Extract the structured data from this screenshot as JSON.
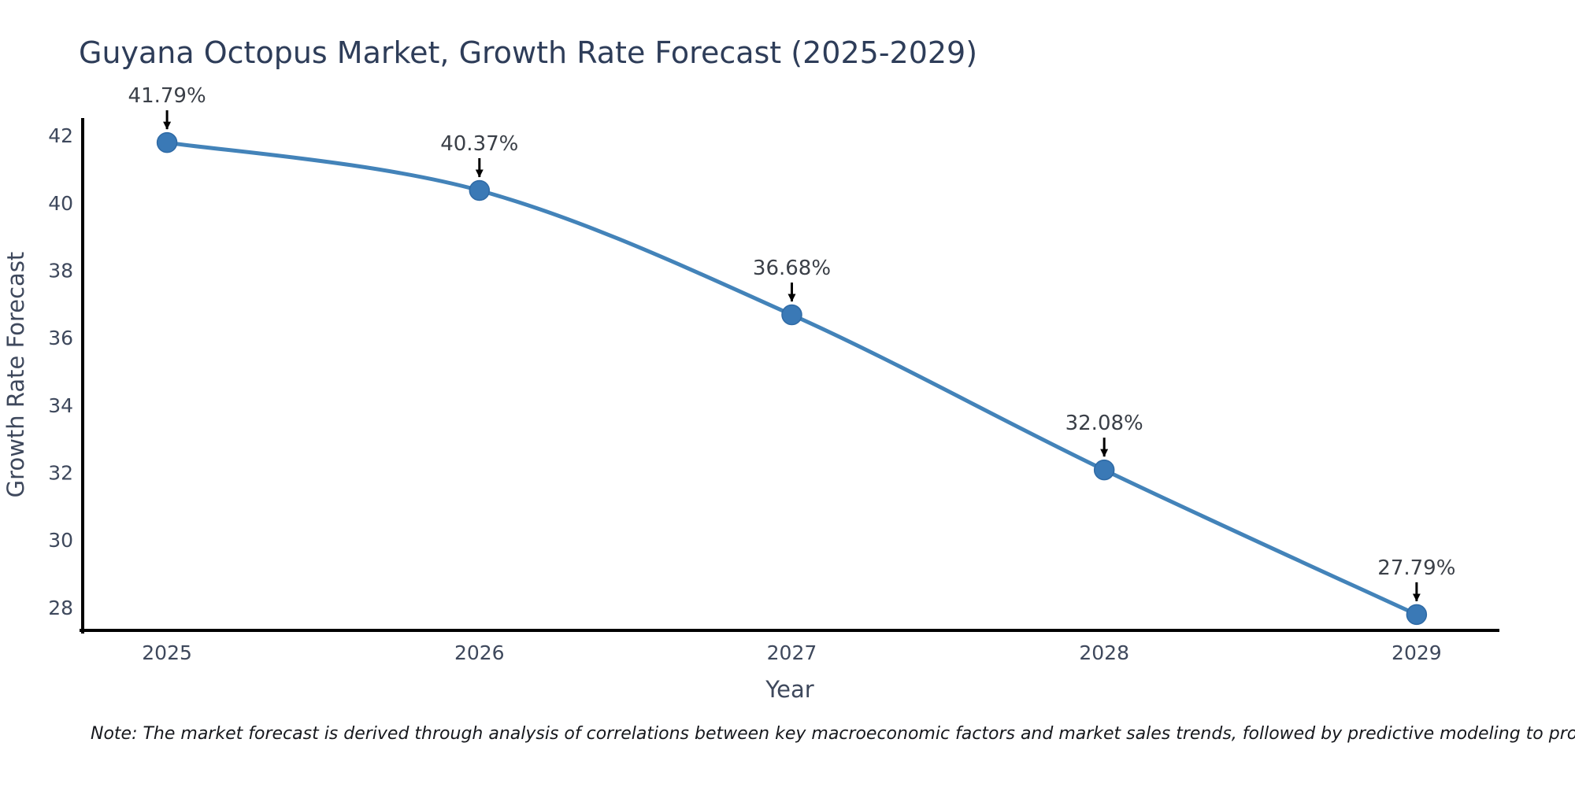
{
  "page": {
    "background_color": "#ffffff"
  },
  "footnote": "Note: The market forecast is derived through analysis of correlations between key macroeconomic factors and market sales trends, followed by predictive modeling to project future sales",
  "chart_data": {
    "type": "line",
    "title": "Guyana Octopus Market, Growth Rate Forecast (2025-2029)",
    "xlabel": "Year",
    "ylabel": "Growth Rate Forecast",
    "x": [
      2025,
      2026,
      2027,
      2028,
      2029
    ],
    "series": [
      {
        "name": "Growth Rate Forecast",
        "values": [
          41.79,
          40.37,
          36.68,
          32.08,
          27.79
        ]
      }
    ],
    "point_labels": [
      "41.79%",
      "40.37%",
      "36.68%",
      "32.08%",
      "27.79%"
    ],
    "xticks": [
      "2025",
      "2026",
      "2027",
      "2028",
      "2029"
    ],
    "yticks": [
      28,
      30,
      32,
      34,
      36,
      38,
      40,
      42
    ],
    "xlim": [
      2024.73,
      2029.26
    ],
    "ylim": [
      27.32,
      42.47
    ],
    "grid": false,
    "legend": "none",
    "line_shape": "spline",
    "colors": {
      "line": "#4383b9",
      "marker": "#3a79b6",
      "marker_edge": "#2f6aa5",
      "annotation_arrow": "#000000",
      "axis_spine": "#000000",
      "title_text": "#2e3d59",
      "tick_text": "#3e485c"
    }
  }
}
